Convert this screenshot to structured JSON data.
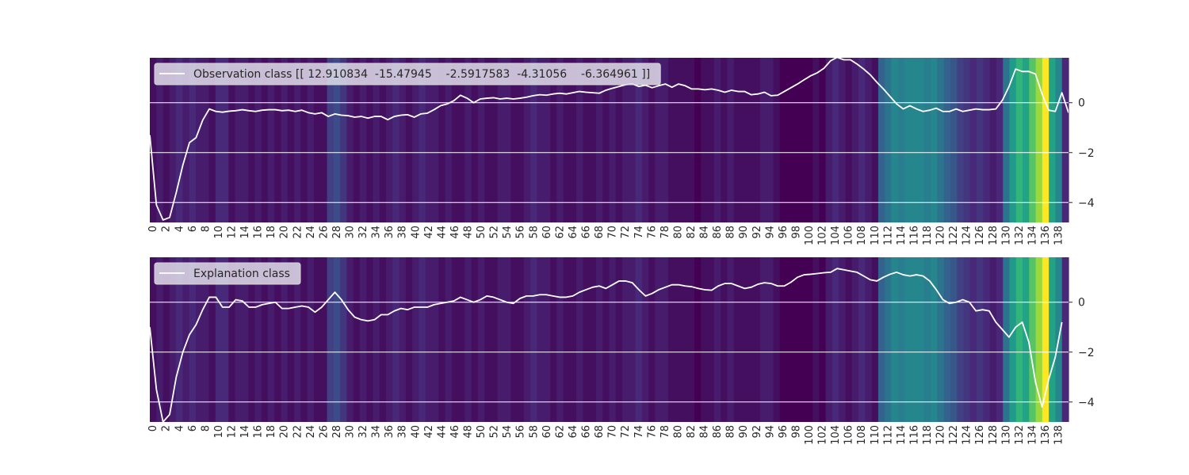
{
  "chart_data": [
    {
      "type": "line",
      "legend": "Observation class [[ 12.910834  -15.47945    -2.5917583  -4.31056    -6.364961 ]]",
      "legend_position": "top-left",
      "grid": true,
      "xlim": [
        0,
        139
      ],
      "ylim": [
        -4.8,
        1.8
      ],
      "yticks": [
        0,
        -2,
        -4
      ],
      "xticks": [
        0,
        2,
        4,
        6,
        8,
        10,
        12,
        14,
        16,
        18,
        20,
        22,
        24,
        26,
        28,
        30,
        32,
        34,
        36,
        38,
        40,
        42,
        44,
        46,
        48,
        50,
        52,
        54,
        56,
        58,
        60,
        62,
        64,
        66,
        68,
        70,
        72,
        74,
        76,
        78,
        80,
        82,
        84,
        86,
        88,
        90,
        92,
        94,
        96,
        98,
        100,
        102,
        104,
        106,
        108,
        110,
        112,
        114,
        116,
        118,
        120,
        122,
        124,
        126,
        128,
        130,
        132,
        134,
        136,
        138
      ],
      "series": [
        {
          "name": "Observation class [[ 12.910834  -15.47945    -2.5917583  -4.31056    -6.364961 ]]",
          "color": "#ffffff",
          "y": [
            -1.3,
            -4.1,
            -4.7,
            -4.6,
            -3.6,
            -2.5,
            -1.6,
            -1.4,
            -0.7,
            -0.25,
            -0.35,
            -0.38,
            -0.34,
            -0.32,
            -0.28,
            -0.32,
            -0.35,
            -0.3,
            -0.28,
            -0.28,
            -0.32,
            -0.3,
            -0.35,
            -0.3,
            -0.4,
            -0.45,
            -0.4,
            -0.55,
            -0.45,
            -0.5,
            -0.52,
            -0.58,
            -0.55,
            -0.62,
            -0.55,
            -0.55,
            -0.68,
            -0.55,
            -0.5,
            -0.48,
            -0.58,
            -0.45,
            -0.42,
            -0.28,
            -0.12,
            -0.05,
            0.08,
            0.3,
            0.18,
            0.0,
            0.15,
            0.18,
            0.2,
            0.15,
            0.18,
            0.15,
            0.18,
            0.22,
            0.28,
            0.32,
            0.3,
            0.35,
            0.38,
            0.35,
            0.4,
            0.45,
            0.42,
            0.4,
            0.38,
            0.5,
            0.58,
            0.65,
            0.72,
            0.75,
            0.65,
            0.7,
            0.6,
            0.68,
            0.75,
            0.62,
            0.75,
            0.68,
            0.55,
            0.55,
            0.52,
            0.55,
            0.5,
            0.42,
            0.5,
            0.45,
            0.45,
            0.32,
            0.35,
            0.42,
            0.28,
            0.3,
            0.45,
            0.6,
            0.75,
            0.92,
            1.08,
            1.2,
            1.38,
            1.68,
            1.82,
            1.72,
            1.72,
            1.55,
            1.35,
            1.12,
            0.82,
            0.55,
            0.25,
            -0.05,
            -0.25,
            -0.12,
            -0.25,
            -0.35,
            -0.3,
            -0.22,
            -0.35,
            -0.35,
            -0.25,
            -0.35,
            -0.3,
            -0.25,
            -0.28,
            -0.28,
            -0.25,
            0.1,
            0.65,
            1.35,
            1.25,
            1.25,
            1.15,
            0.35,
            -0.3,
            -0.35,
            0.4,
            -0.4
          ]
        }
      ],
      "heat": [
        1,
        2,
        1,
        2,
        3,
        2,
        3,
        2,
        2,
        1,
        3,
        3,
        1,
        2,
        2,
        1,
        2,
        1,
        2,
        1,
        2,
        1,
        2,
        1,
        2,
        1,
        1,
        5,
        6,
        4,
        2,
        1,
        2,
        1,
        2,
        1,
        2,
        3,
        2,
        1,
        2,
        3,
        2,
        2,
        1,
        2,
        1,
        1,
        2,
        1,
        2,
        1,
        1,
        2,
        2,
        1,
        1,
        2,
        3,
        2,
        2,
        1,
        2,
        1,
        1,
        2,
        1,
        1,
        2,
        1,
        2,
        1,
        2,
        2,
        3,
        2,
        1,
        2,
        2,
        1,
        1,
        1,
        1,
        0,
        1,
        1,
        2,
        1,
        2,
        1,
        1,
        1,
        1,
        2,
        2,
        1,
        0,
        0,
        0,
        0,
        0,
        1,
        0,
        2,
        3,
        2,
        1,
        2,
        3,
        2,
        1,
        8,
        10,
        12,
        11,
        12,
        12,
        12,
        11,
        12,
        10,
        8,
        7,
        5,
        4,
        3,
        4,
        3,
        2,
        3,
        10,
        14,
        17,
        15,
        19,
        22,
        26,
        15,
        12,
        3
      ]
    },
    {
      "type": "line",
      "legend": "Explanation class",
      "legend_position": "top-left",
      "grid": true,
      "xlim": [
        0,
        139
      ],
      "ylim": [
        -4.8,
        1.8
      ],
      "yticks": [
        0,
        -2,
        -4
      ],
      "xticks": [
        0,
        2,
        4,
        6,
        8,
        10,
        12,
        14,
        16,
        18,
        20,
        22,
        24,
        26,
        28,
        30,
        32,
        34,
        36,
        38,
        40,
        42,
        44,
        46,
        48,
        50,
        52,
        54,
        56,
        58,
        60,
        62,
        64,
        66,
        68,
        70,
        72,
        74,
        76,
        78,
        80,
        82,
        84,
        86,
        88,
        90,
        92,
        94,
        96,
        98,
        100,
        102,
        104,
        106,
        108,
        110,
        112,
        114,
        116,
        118,
        120,
        122,
        124,
        126,
        128,
        130,
        132,
        134,
        136,
        138
      ],
      "series": [
        {
          "name": "Explanation class",
          "color": "#ffffff",
          "y": [
            -1.0,
            -3.5,
            -4.8,
            -4.5,
            -3.0,
            -2.0,
            -1.3,
            -0.9,
            -0.3,
            0.2,
            0.2,
            -0.2,
            -0.2,
            0.1,
            0.05,
            -0.2,
            -0.2,
            -0.1,
            -0.05,
            0.0,
            -0.25,
            -0.25,
            -0.2,
            -0.15,
            -0.2,
            -0.4,
            -0.2,
            0.1,
            0.4,
            0.1,
            -0.3,
            -0.6,
            -0.7,
            -0.75,
            -0.7,
            -0.5,
            -0.5,
            -0.35,
            -0.25,
            -0.3,
            -0.2,
            -0.2,
            -0.2,
            -0.1,
            -0.05,
            0.0,
            0.05,
            0.2,
            0.1,
            0.0,
            0.1,
            0.25,
            0.2,
            0.1,
            0.0,
            -0.05,
            0.15,
            0.25,
            0.25,
            0.3,
            0.3,
            0.25,
            0.2,
            0.2,
            0.25,
            0.4,
            0.5,
            0.6,
            0.65,
            0.55,
            0.7,
            0.85,
            0.85,
            0.78,
            0.5,
            0.25,
            0.35,
            0.5,
            0.6,
            0.7,
            0.7,
            0.65,
            0.62,
            0.55,
            0.5,
            0.48,
            0.65,
            0.75,
            0.75,
            0.65,
            0.55,
            0.6,
            0.72,
            0.78,
            0.75,
            0.65,
            0.65,
            0.8,
            1.0,
            1.1,
            1.12,
            1.15,
            1.18,
            1.2,
            1.35,
            1.3,
            1.25,
            1.2,
            1.05,
            0.9,
            0.85,
            1.0,
            1.12,
            1.2,
            1.1,
            1.05,
            1.1,
            1.05,
            0.85,
            0.5,
            0.1,
            -0.05,
            0.0,
            0.1,
            0.0,
            -0.35,
            -0.3,
            -0.35,
            -0.8,
            -1.1,
            -1.4,
            -1.0,
            -0.8,
            -1.6,
            -3.2,
            -4.2,
            -3.1,
            -2.2,
            -0.8
          ]
        }
      ],
      "heat": [
        1,
        2,
        1,
        2,
        3,
        2,
        3,
        2,
        2,
        1,
        3,
        3,
        1,
        2,
        2,
        1,
        2,
        1,
        2,
        1,
        2,
        1,
        2,
        1,
        2,
        1,
        1,
        5,
        6,
        4,
        2,
        1,
        2,
        1,
        2,
        1,
        2,
        3,
        2,
        1,
        2,
        3,
        2,
        2,
        1,
        2,
        1,
        1,
        2,
        1,
        2,
        1,
        1,
        2,
        2,
        1,
        1,
        2,
        3,
        2,
        2,
        1,
        2,
        1,
        1,
        2,
        1,
        1,
        2,
        1,
        2,
        1,
        2,
        2,
        3,
        2,
        1,
        2,
        2,
        1,
        1,
        1,
        1,
        0,
        1,
        1,
        2,
        1,
        2,
        1,
        1,
        1,
        1,
        2,
        2,
        1,
        0,
        0,
        0,
        0,
        0,
        1,
        0,
        2,
        3,
        2,
        1,
        2,
        3,
        2,
        1,
        8,
        10,
        12,
        11,
        12,
        12,
        12,
        11,
        12,
        10,
        8,
        7,
        5,
        4,
        3,
        4,
        3,
        2,
        3,
        10,
        14,
        17,
        15,
        19,
        22,
        26,
        15,
        12,
        3
      ]
    }
  ]
}
